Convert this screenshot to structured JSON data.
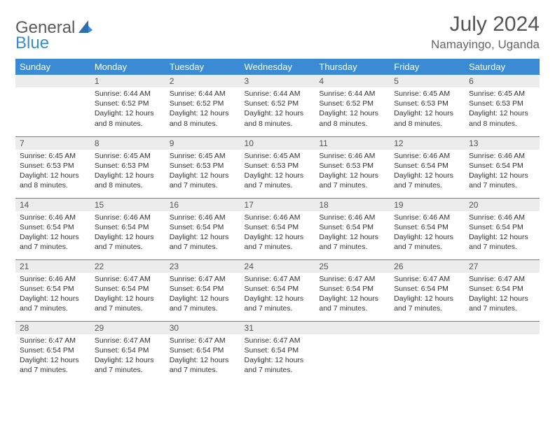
{
  "brand": {
    "part1": "General",
    "part2": "Blue"
  },
  "title": "July 2024",
  "location": "Namayingo, Uganda",
  "colors": {
    "header_bg": "#3b8bd4",
    "header_text": "#ffffff",
    "daynum_bg": "#ececec",
    "border": "#3b8bd4",
    "text": "#333333",
    "brand_gray": "#5a5a5a",
    "brand_blue": "#3b8bd4"
  },
  "dayNames": [
    "Sunday",
    "Monday",
    "Tuesday",
    "Wednesday",
    "Thursday",
    "Friday",
    "Saturday"
  ],
  "weeks": [
    [
      {
        "n": "",
        "sunrise": "",
        "sunset": "",
        "daylight": ""
      },
      {
        "n": "1",
        "sunrise": "Sunrise: 6:44 AM",
        "sunset": "Sunset: 6:52 PM",
        "daylight": "Daylight: 12 hours and 8 minutes."
      },
      {
        "n": "2",
        "sunrise": "Sunrise: 6:44 AM",
        "sunset": "Sunset: 6:52 PM",
        "daylight": "Daylight: 12 hours and 8 minutes."
      },
      {
        "n": "3",
        "sunrise": "Sunrise: 6:44 AM",
        "sunset": "Sunset: 6:52 PM",
        "daylight": "Daylight: 12 hours and 8 minutes."
      },
      {
        "n": "4",
        "sunrise": "Sunrise: 6:44 AM",
        "sunset": "Sunset: 6:52 PM",
        "daylight": "Daylight: 12 hours and 8 minutes."
      },
      {
        "n": "5",
        "sunrise": "Sunrise: 6:45 AM",
        "sunset": "Sunset: 6:53 PM",
        "daylight": "Daylight: 12 hours and 8 minutes."
      },
      {
        "n": "6",
        "sunrise": "Sunrise: 6:45 AM",
        "sunset": "Sunset: 6:53 PM",
        "daylight": "Daylight: 12 hours and 8 minutes."
      }
    ],
    [
      {
        "n": "7",
        "sunrise": "Sunrise: 6:45 AM",
        "sunset": "Sunset: 6:53 PM",
        "daylight": "Daylight: 12 hours and 8 minutes."
      },
      {
        "n": "8",
        "sunrise": "Sunrise: 6:45 AM",
        "sunset": "Sunset: 6:53 PM",
        "daylight": "Daylight: 12 hours and 8 minutes."
      },
      {
        "n": "9",
        "sunrise": "Sunrise: 6:45 AM",
        "sunset": "Sunset: 6:53 PM",
        "daylight": "Daylight: 12 hours and 7 minutes."
      },
      {
        "n": "10",
        "sunrise": "Sunrise: 6:45 AM",
        "sunset": "Sunset: 6:53 PM",
        "daylight": "Daylight: 12 hours and 7 minutes."
      },
      {
        "n": "11",
        "sunrise": "Sunrise: 6:46 AM",
        "sunset": "Sunset: 6:53 PM",
        "daylight": "Daylight: 12 hours and 7 minutes."
      },
      {
        "n": "12",
        "sunrise": "Sunrise: 6:46 AM",
        "sunset": "Sunset: 6:54 PM",
        "daylight": "Daylight: 12 hours and 7 minutes."
      },
      {
        "n": "13",
        "sunrise": "Sunrise: 6:46 AM",
        "sunset": "Sunset: 6:54 PM",
        "daylight": "Daylight: 12 hours and 7 minutes."
      }
    ],
    [
      {
        "n": "14",
        "sunrise": "Sunrise: 6:46 AM",
        "sunset": "Sunset: 6:54 PM",
        "daylight": "Daylight: 12 hours and 7 minutes."
      },
      {
        "n": "15",
        "sunrise": "Sunrise: 6:46 AM",
        "sunset": "Sunset: 6:54 PM",
        "daylight": "Daylight: 12 hours and 7 minutes."
      },
      {
        "n": "16",
        "sunrise": "Sunrise: 6:46 AM",
        "sunset": "Sunset: 6:54 PM",
        "daylight": "Daylight: 12 hours and 7 minutes."
      },
      {
        "n": "17",
        "sunrise": "Sunrise: 6:46 AM",
        "sunset": "Sunset: 6:54 PM",
        "daylight": "Daylight: 12 hours and 7 minutes."
      },
      {
        "n": "18",
        "sunrise": "Sunrise: 6:46 AM",
        "sunset": "Sunset: 6:54 PM",
        "daylight": "Daylight: 12 hours and 7 minutes."
      },
      {
        "n": "19",
        "sunrise": "Sunrise: 6:46 AM",
        "sunset": "Sunset: 6:54 PM",
        "daylight": "Daylight: 12 hours and 7 minutes."
      },
      {
        "n": "20",
        "sunrise": "Sunrise: 6:46 AM",
        "sunset": "Sunset: 6:54 PM",
        "daylight": "Daylight: 12 hours and 7 minutes."
      }
    ],
    [
      {
        "n": "21",
        "sunrise": "Sunrise: 6:46 AM",
        "sunset": "Sunset: 6:54 PM",
        "daylight": "Daylight: 12 hours and 7 minutes."
      },
      {
        "n": "22",
        "sunrise": "Sunrise: 6:47 AM",
        "sunset": "Sunset: 6:54 PM",
        "daylight": "Daylight: 12 hours and 7 minutes."
      },
      {
        "n": "23",
        "sunrise": "Sunrise: 6:47 AM",
        "sunset": "Sunset: 6:54 PM",
        "daylight": "Daylight: 12 hours and 7 minutes."
      },
      {
        "n": "24",
        "sunrise": "Sunrise: 6:47 AM",
        "sunset": "Sunset: 6:54 PM",
        "daylight": "Daylight: 12 hours and 7 minutes."
      },
      {
        "n": "25",
        "sunrise": "Sunrise: 6:47 AM",
        "sunset": "Sunset: 6:54 PM",
        "daylight": "Daylight: 12 hours and 7 minutes."
      },
      {
        "n": "26",
        "sunrise": "Sunrise: 6:47 AM",
        "sunset": "Sunset: 6:54 PM",
        "daylight": "Daylight: 12 hours and 7 minutes."
      },
      {
        "n": "27",
        "sunrise": "Sunrise: 6:47 AM",
        "sunset": "Sunset: 6:54 PM",
        "daylight": "Daylight: 12 hours and 7 minutes."
      }
    ],
    [
      {
        "n": "28",
        "sunrise": "Sunrise: 6:47 AM",
        "sunset": "Sunset: 6:54 PM",
        "daylight": "Daylight: 12 hours and 7 minutes."
      },
      {
        "n": "29",
        "sunrise": "Sunrise: 6:47 AM",
        "sunset": "Sunset: 6:54 PM",
        "daylight": "Daylight: 12 hours and 7 minutes."
      },
      {
        "n": "30",
        "sunrise": "Sunrise: 6:47 AM",
        "sunset": "Sunset: 6:54 PM",
        "daylight": "Daylight: 12 hours and 7 minutes."
      },
      {
        "n": "31",
        "sunrise": "Sunrise: 6:47 AM",
        "sunset": "Sunset: 6:54 PM",
        "daylight": "Daylight: 12 hours and 7 minutes."
      },
      {
        "n": "",
        "sunrise": "",
        "sunset": "",
        "daylight": ""
      },
      {
        "n": "",
        "sunrise": "",
        "sunset": "",
        "daylight": ""
      },
      {
        "n": "",
        "sunrise": "",
        "sunset": "",
        "daylight": ""
      }
    ]
  ]
}
